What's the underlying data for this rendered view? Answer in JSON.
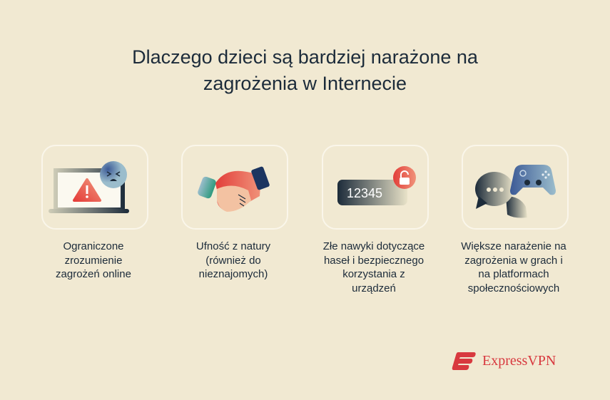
{
  "title": {
    "line1": "Dlaczego dzieci są bardziej narażone na",
    "line2": "zagrożenia w Internecie"
  },
  "cards": [
    {
      "icon": "laptop-warning-icon",
      "caption": [
        "Ograniczone",
        "zrozumienie",
        "zagrożeń online"
      ]
    },
    {
      "icon": "handshake-icon",
      "caption": [
        "Ufność z natury",
        "(również do",
        "nieznajomych)"
      ]
    },
    {
      "icon": "password-unlocked-icon",
      "password_text": "12345",
      "caption": [
        "Złe nawyki dotyczące",
        "haseł i bezpiecznego",
        "korzystania z",
        "urządzeń"
      ]
    },
    {
      "icon": "chat-gamepad-icon",
      "caption": [
        "Większe narażenie na",
        "zagrożenia w grach i",
        "na platformach",
        "społecznościowych"
      ]
    }
  ],
  "brand": {
    "name": "ExpressVPN",
    "color": "#d8393f"
  },
  "colors": {
    "background": "#f1e9d2",
    "text": "#1c2b3a",
    "accent_red": "#e0483f",
    "blue": "#4a6fa8"
  }
}
